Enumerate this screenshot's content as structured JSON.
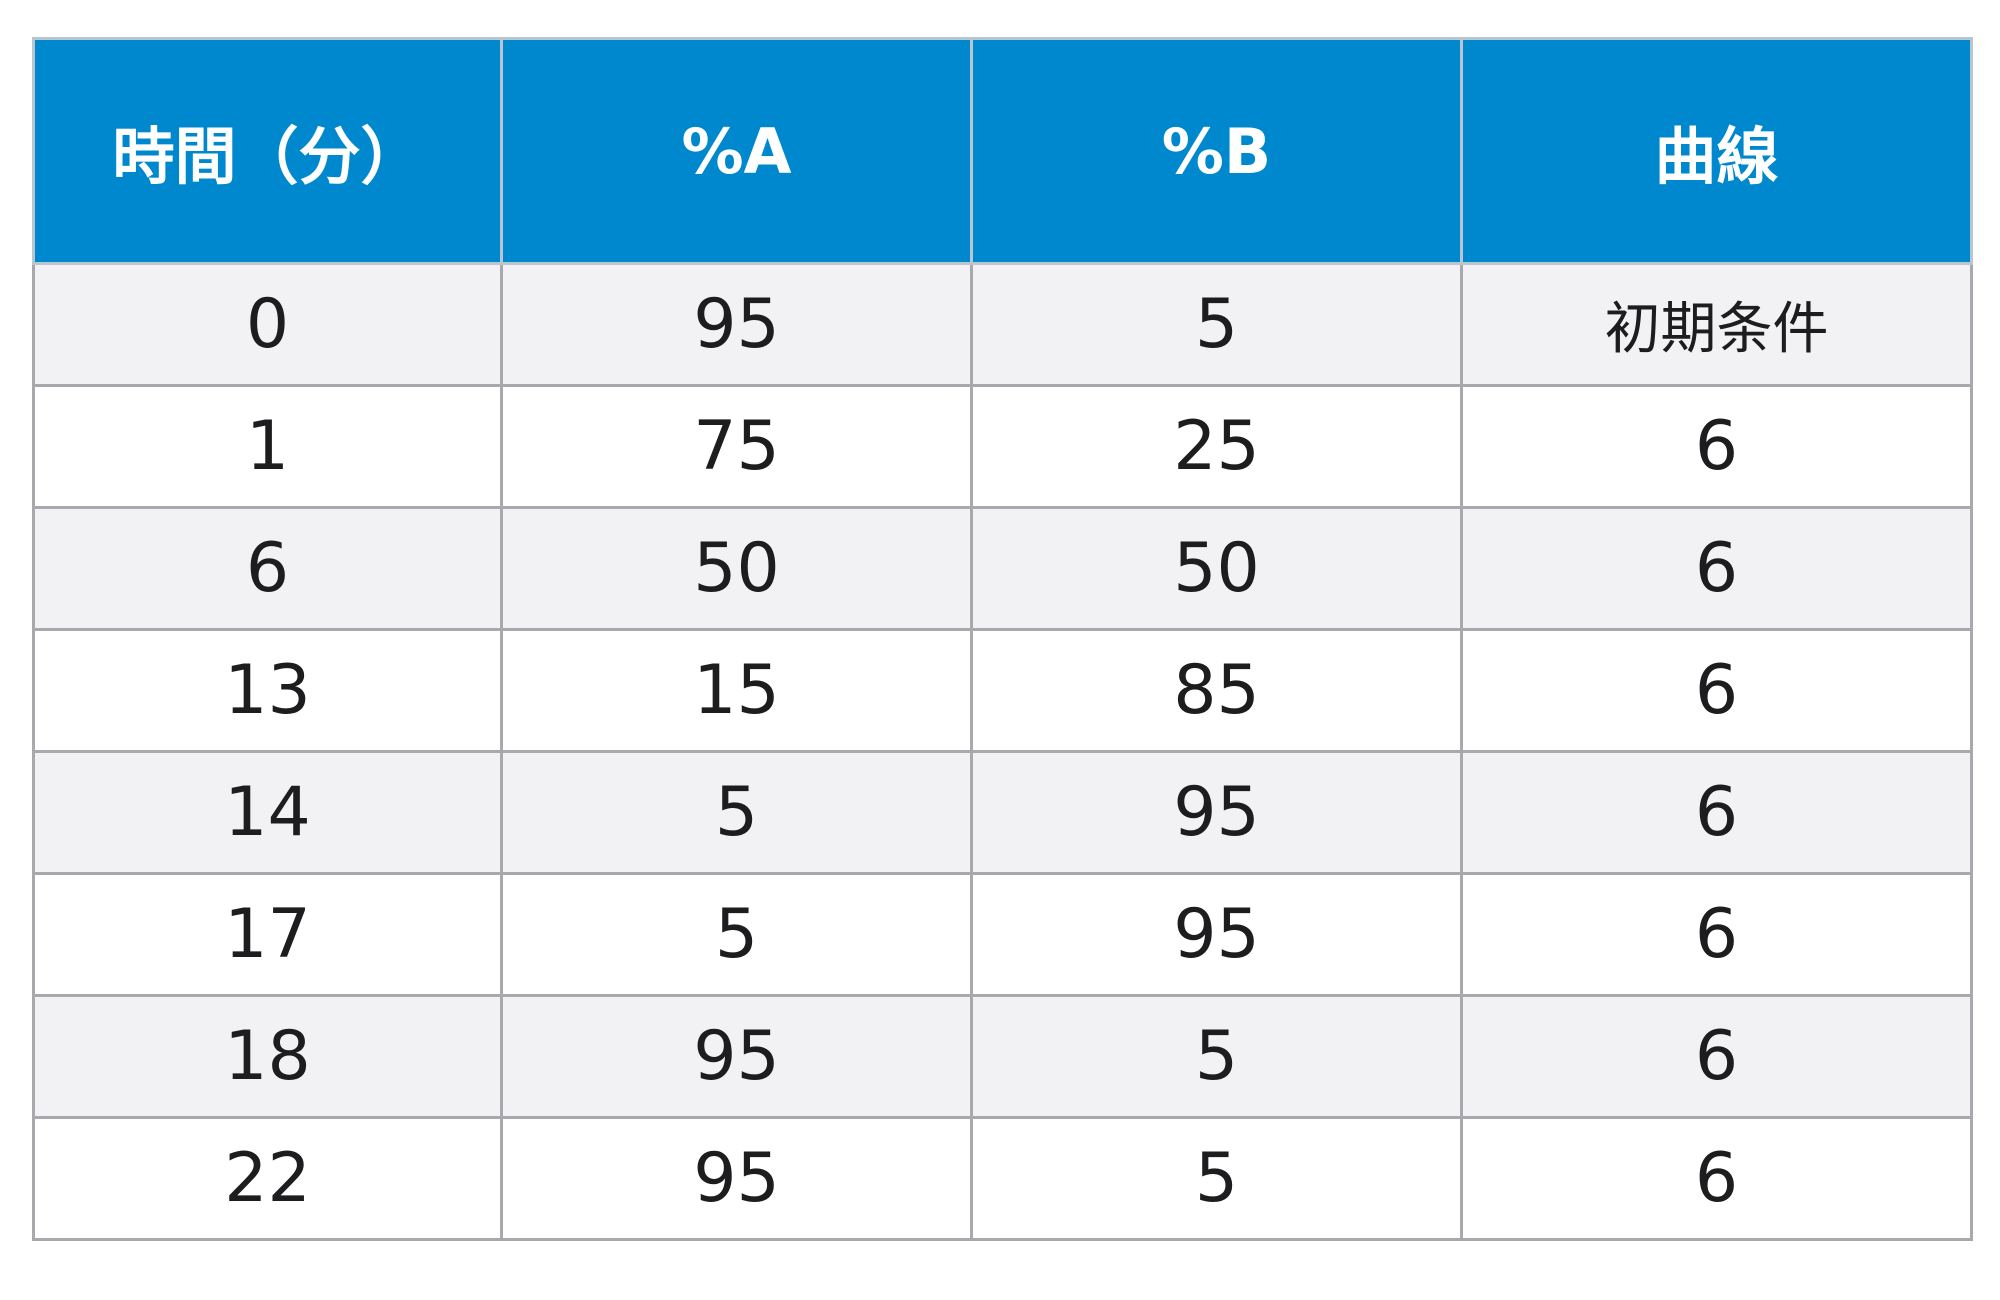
{
  "table": {
    "headers": [
      "時間（分）",
      "%A",
      "%B",
      "曲線"
    ],
    "rows": [
      [
        "0",
        "95",
        "5",
        "初期条件"
      ],
      [
        "1",
        "75",
        "25",
        "6"
      ],
      [
        "6",
        "50",
        "50",
        "6"
      ],
      [
        "13",
        "15",
        "85",
        "6"
      ],
      [
        "14",
        "5",
        "95",
        "6"
      ],
      [
        "17",
        "5",
        "95",
        "6"
      ],
      [
        "18",
        "95",
        "5",
        "6"
      ],
      [
        "22",
        "95",
        "5",
        "6"
      ]
    ]
  },
  "colors": {
    "header_background": "#0088cf",
    "header_text": "#ffffff",
    "row_stripe": "#f2f2f4",
    "row_plain": "#ffffff",
    "border": "#a7a9ac"
  }
}
